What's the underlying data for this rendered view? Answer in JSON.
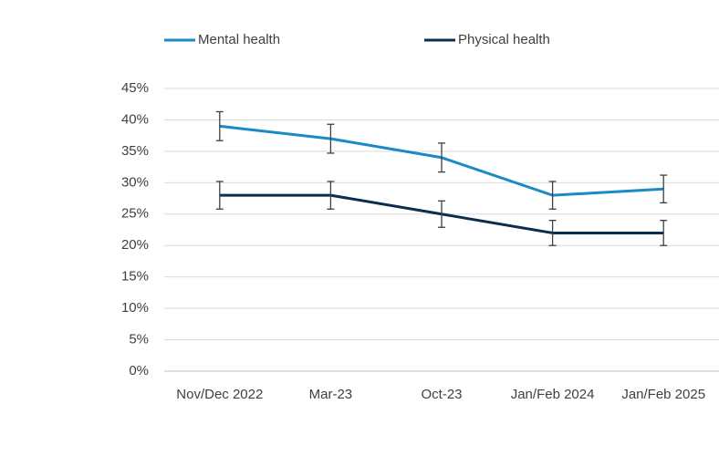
{
  "chart_data": {
    "type": "line",
    "categories": [
      "Nov/Dec 2022",
      "Mar-23",
      "Oct-23",
      "Jan/Feb 2024",
      "Jan/Feb 2025"
    ],
    "series": [
      {
        "name": "Mental health",
        "color": "#1a8ac6",
        "values": [
          39,
          37,
          34,
          28,
          29
        ],
        "errors": [
          2.3,
          2.3,
          2.3,
          2.2,
          2.2
        ]
      },
      {
        "name": "Physical health",
        "color": "#0b2d4f",
        "values": [
          28,
          28,
          25,
          22,
          22
        ],
        "errors": [
          2.2,
          2.2,
          2.1,
          2,
          2
        ]
      }
    ],
    "ylim": [
      0,
      45
    ],
    "yticks": [
      {
        "value": 0,
        "label": "0%"
      },
      {
        "value": 5,
        "label": "5%"
      },
      {
        "value": 10,
        "label": "10%"
      },
      {
        "value": 15,
        "label": "15%"
      },
      {
        "value": 20,
        "label": "20%"
      },
      {
        "value": 25,
        "label": "25%"
      },
      {
        "value": 30,
        "label": "30%"
      },
      {
        "value": 35,
        "label": "35%"
      },
      {
        "value": 40,
        "label": "40%"
      },
      {
        "value": 45,
        "label": "45%"
      }
    ],
    "grid": true,
    "legend": "top",
    "error_color": "#404040"
  }
}
